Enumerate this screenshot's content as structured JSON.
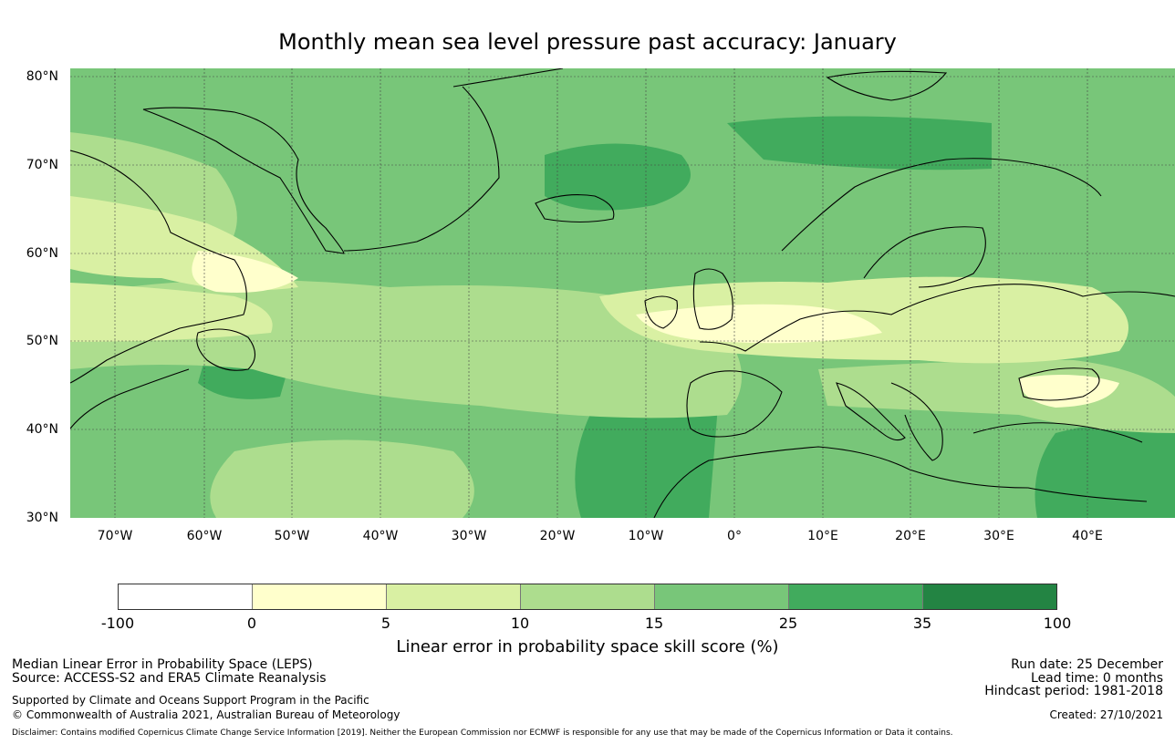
{
  "title": "Monthly mean sea level pressure past accuracy: January",
  "map": {
    "lat_labels": [
      "80°N",
      "70°N",
      "60°N",
      "50°N",
      "40°N",
      "30°N"
    ],
    "lon_labels": [
      "70°W",
      "60°W",
      "50°W",
      "40°W",
      "30°W",
      "20°W",
      "10°W",
      "0°",
      "10°E",
      "20°E",
      "30°E",
      "40°E"
    ],
    "colors": {
      "lt0": "#ffffff",
      "c0_5": "#ffffcc",
      "c5_10": "#d9f0a3",
      "c10_15": "#addd8e",
      "c15_25": "#78c679",
      "c25_35": "#41ab5d",
      "c35_100": "#238443",
      "coast": "#000000",
      "grid": "#444444"
    }
  },
  "colorbar": {
    "ticks": [
      "-100",
      "0",
      "5",
      "10",
      "15",
      "25",
      "35",
      "100"
    ],
    "title": "Linear error in probability space skill score (%)"
  },
  "footer": {
    "left_1": "Median Linear Error in Probability Space (LEPS)",
    "left_2": "Source: ACCESS-S2 and ERA5 Climate Reanalysis",
    "left_3": "Supported by Climate and Oceans Support Program in the Pacific",
    "left_4": "© Commonwealth of Australia 2021, Australian Bureau of Meteorology",
    "right_1": "Run date: 25 December",
    "right_2": "Lead time: 0 months",
    "right_3": "Hindcast period: 1981-2018",
    "right_4": "Created: 27/10/2021",
    "disclaimer": "Disclaimer: Contains modified Copernicus Climate Change Service Information [2019]. Neither the European Commission nor ECMWF is responsible for any use that may be made of the Copernicus Information or Data it contains."
  }
}
